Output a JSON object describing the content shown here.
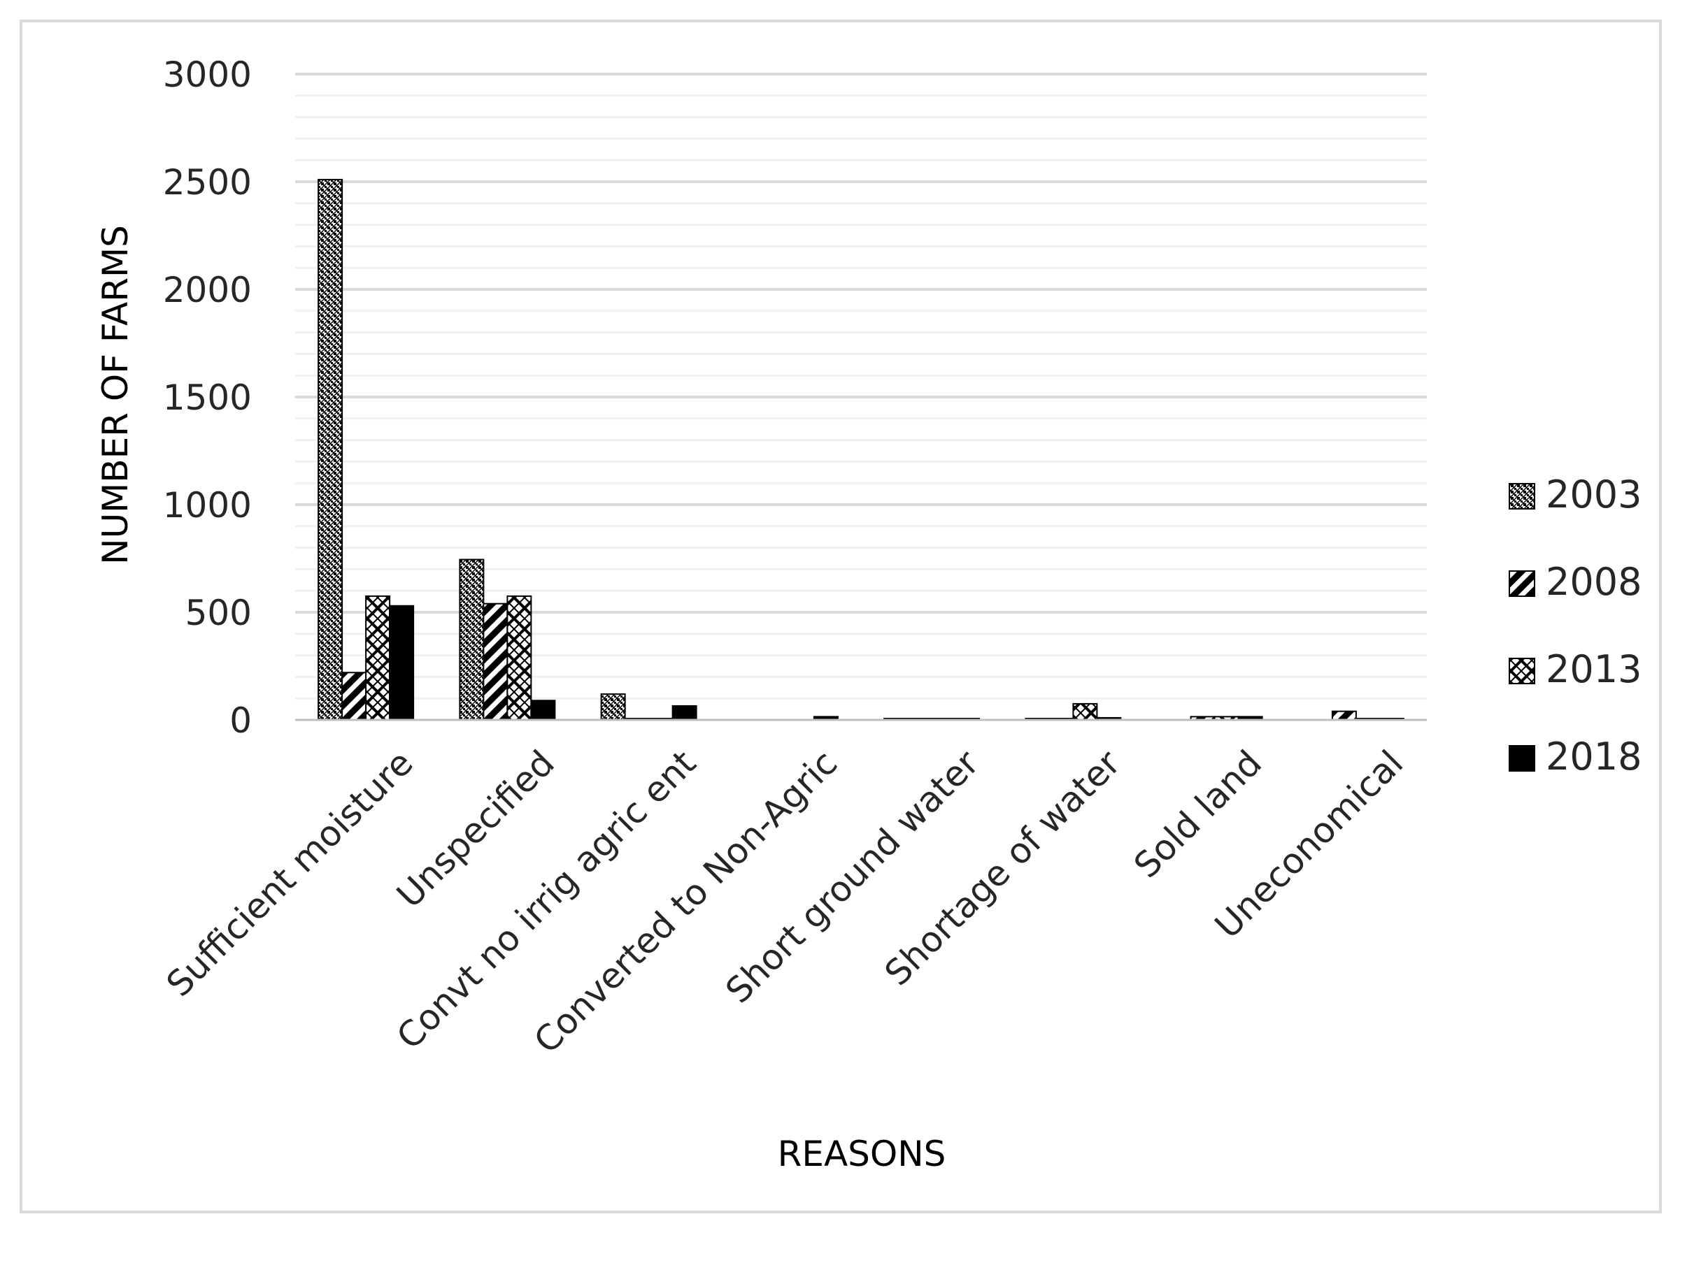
{
  "chart_data": {
    "type": "bar",
    "title": "",
    "xlabel": "REASONS",
    "ylabel": "NUMBER OF FARMS",
    "ylim": [
      0,
      3000
    ],
    "yticks": [
      0,
      500,
      1000,
      1500,
      2000,
      2500,
      3000
    ],
    "grid": true,
    "legend_position": "right",
    "categories": [
      "Sufficient moisture",
      "Unspecified",
      "Convt no irrig agric ent",
      "Converted to Non-Agric",
      "Short ground water",
      "Shortage of water",
      "Sold land",
      "Uneconomical"
    ],
    "series": [
      {
        "name": "2003",
        "pattern": "crosshatch",
        "values": [
          2510,
          745,
          120,
          0,
          5,
          5,
          0,
          0
        ]
      },
      {
        "name": "2008",
        "pattern": "diagonal",
        "values": [
          220,
          540,
          5,
          0,
          5,
          5,
          15,
          40
        ]
      },
      {
        "name": "2013",
        "pattern": "zigzag",
        "values": [
          575,
          575,
          5,
          0,
          5,
          75,
          15,
          5
        ]
      },
      {
        "name": "2018",
        "pattern": "solid",
        "values": [
          530,
          90,
          65,
          15,
          5,
          10,
          15,
          5
        ]
      }
    ]
  }
}
